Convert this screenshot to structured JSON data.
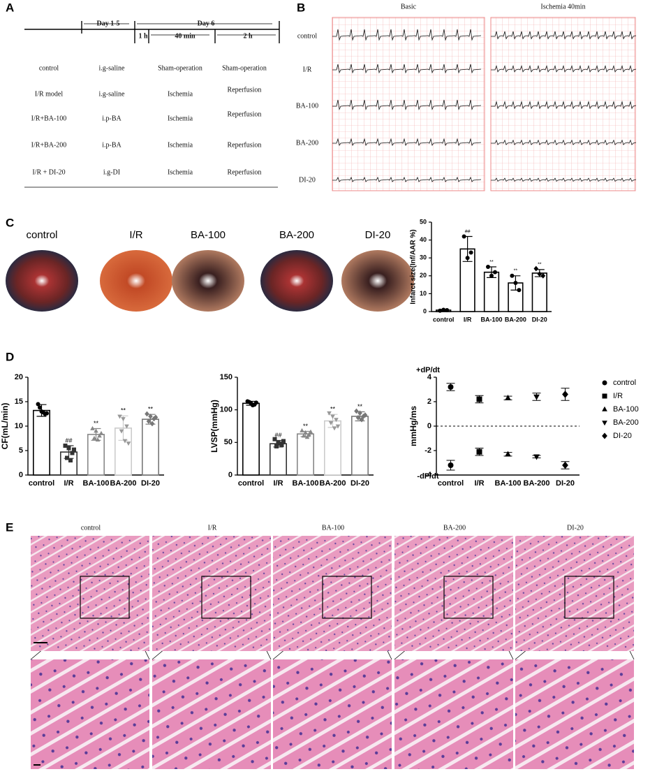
{
  "panel_labels": [
    "A",
    "B",
    "C",
    "D",
    "E"
  ],
  "panel_a": {
    "periods": [
      "Day 1-5",
      "Day 6",
      "1 h",
      "40 min",
      "2 h"
    ],
    "rows": [
      [
        "control",
        "i.g-saline",
        "Sham-operation",
        "Sham-operation"
      ],
      [
        "I/R model",
        "i.g-saline",
        "Ischemia",
        "Reperfusion"
      ],
      [
        "I/R+BA-100",
        "i.p-BA",
        "Ischemia",
        "Reperfusion"
      ],
      [
        "I/R+BA-200",
        "i.p-BA",
        "Ischemia",
        "Reperfusion"
      ],
      [
        "I/R + DI-20",
        "i.g-DI",
        "Ischemia",
        "Reperfusion"
      ]
    ]
  },
  "panel_b": {
    "columns": [
      "Basic",
      "Ischemia 40min"
    ],
    "rows": [
      "control",
      "I/R",
      "BA-100",
      "BA-200",
      "DI-20"
    ]
  },
  "panel_c": {
    "labels": [
      "control",
      "I/R",
      "BA-100",
      "BA-200",
      "DI-20"
    ]
  },
  "panel_e": {
    "labels": [
      "control",
      "I/R",
      "BA-100",
      "BA-200",
      "DI-20"
    ]
  },
  "chart_data": [
    {
      "type": "bar",
      "ylabel": "Infarct size(Inf/AAR %)",
      "categories": [
        "control",
        "I/R",
        "BA-100",
        "BA-200",
        "DI-20"
      ],
      "values": [
        0.8,
        35,
        22,
        16,
        21.5
      ],
      "errors": [
        0.4,
        7,
        3,
        4,
        2
      ],
      "points": [
        [
          0.5,
          1,
          0.8
        ],
        [
          42,
          30,
          33
        ],
        [
          25,
          20,
          22
        ],
        [
          20,
          16,
          12
        ],
        [
          24,
          21,
          20
        ]
      ],
      "annotations": [
        null,
        "##",
        "**",
        "**",
        "**"
      ],
      "markers": [
        "circle",
        "circle",
        "circle",
        "circle",
        "diamond"
      ],
      "colors": [
        "#000000",
        "#000000",
        "#000000",
        "#000000",
        "#000000"
      ],
      "ylim": [
        0,
        50
      ],
      "yticks": [
        0,
        10,
        20,
        30,
        40,
        50
      ]
    },
    {
      "type": "bar",
      "ylabel": "CF(mL/min)",
      "categories": [
        "control",
        "I/R",
        "BA-100",
        "BA-200",
        "DI-20"
      ],
      "values": [
        13.2,
        4.7,
        8.3,
        9.6,
        11.4
      ],
      "errors": [
        1.2,
        1.3,
        1.2,
        2.5,
        1
      ],
      "points": [
        [
          14.5,
          13,
          12.5,
          13.8,
          12.8,
          12.6
        ],
        [
          6,
          5.5,
          4.5,
          3.5,
          3,
          5.2
        ],
        [
          9.5,
          9,
          8,
          7.5,
          7.2,
          8.5
        ],
        [
          12,
          11.5,
          10,
          9,
          7,
          6.5
        ],
        [
          12.5,
          12,
          11.5,
          11,
          10.5,
          11.8
        ]
      ],
      "annotations": [
        null,
        "##",
        "**",
        "**",
        "**"
      ],
      "markers": [
        "circle",
        "square",
        "triangle-up",
        "triangle-down",
        "diamond"
      ],
      "colors": [
        "#000000",
        "#333333",
        "#888888",
        "#cccccc",
        "#777777"
      ],
      "ylim": [
        0,
        20
      ],
      "yticks": [
        0,
        5,
        10,
        15,
        20
      ]
    },
    {
      "type": "bar",
      "ylabel": "LVSP(mmHg)",
      "categories": [
        "control",
        "I/R",
        "BA-100",
        "BA-200",
        "DI-20"
      ],
      "values": [
        110,
        48,
        63,
        83,
        90
      ],
      "errors": [
        3,
        5,
        4,
        10,
        7
      ],
      "points": [
        [
          113,
          110,
          108,
          112,
          107,
          111
        ],
        [
          55,
          50,
          46,
          44,
          48,
          52
        ],
        [
          68,
          65,
          62,
          60,
          58,
          66
        ],
        [
          95,
          90,
          85,
          80,
          72,
          75
        ],
        [
          98,
          95,
          90,
          88,
          85,
          92
        ]
      ],
      "annotations": [
        null,
        "##",
        "**",
        "**",
        "**"
      ],
      "markers": [
        "circle",
        "square",
        "triangle-up",
        "triangle-down",
        "diamond"
      ],
      "colors": [
        "#000000",
        "#333333",
        "#888888",
        "#cccccc",
        "#777777"
      ],
      "ylim": [
        0,
        150
      ],
      "yticks": [
        0,
        50,
        100,
        150
      ]
    },
    {
      "type": "scatter",
      "ylabel": "mmHg/ms",
      "annotations": [
        "+dP/dt",
        "-dP/dt"
      ],
      "categories": [
        "control",
        "I/R",
        "BA-100",
        "BA-200",
        "DI-20"
      ],
      "series": [
        {
          "name": "control",
          "marker": "circle",
          "values": [
            3.2,
            -3.2
          ],
          "errors": [
            0.3,
            0.4
          ]
        },
        {
          "name": "I/R",
          "marker": "square",
          "values": [
            2.2,
            -2.1
          ],
          "errors": [
            0.3,
            0.3
          ]
        },
        {
          "name": "BA-100",
          "marker": "triangle-up",
          "values": [
            2.3,
            -2.3
          ],
          "errors": [
            0.15,
            0.15
          ]
        },
        {
          "name": "BA-200",
          "marker": "triangle-down",
          "values": [
            2.4,
            -2.5
          ],
          "errors": [
            0.3,
            0.1
          ]
        },
        {
          "name": "DI-20",
          "marker": "diamond",
          "values": [
            2.6,
            -3.2
          ],
          "errors": [
            0.5,
            0.3
          ]
        }
      ],
      "reference_line": 0,
      "ylim": [
        -4,
        4
      ],
      "yticks": [
        -4,
        -2,
        0,
        2,
        4
      ]
    }
  ]
}
